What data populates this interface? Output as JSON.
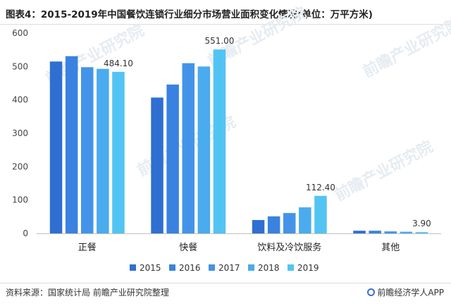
{
  "header": {
    "title": "图表4：2015-2019年中国餐饮连锁行业细分市场营业面积变化情况(单位：万平方米)"
  },
  "footer": {
    "source": "资料来源：国家统计局 前瞻产业研究院整理",
    "brand": "前瞻经济学人APP"
  },
  "watermark_text": "前瞻产业研究院",
  "chart_data": {
    "type": "bar",
    "title": "",
    "xlabel": "",
    "ylabel": "",
    "categories": [
      "正餐",
      "快餐",
      "饮料及冷饮服务",
      "其他"
    ],
    "series": [
      {
        "name": "2015",
        "color": "#2f6fd1",
        "values": [
          515,
          407,
          40,
          8
        ]
      },
      {
        "name": "2016",
        "color": "#3a82e0",
        "values": [
          531,
          446,
          51,
          8
        ]
      },
      {
        "name": "2017",
        "color": "#4394e8",
        "values": [
          498,
          510,
          61,
          6
        ]
      },
      {
        "name": "2018",
        "color": "#4aabee",
        "values": [
          493,
          500,
          78,
          5
        ]
      },
      {
        "name": "2019",
        "color": "#52c4f3",
        "values": [
          484.1,
          551.0,
          112.4,
          3.9
        ]
      }
    ],
    "data_labels": [
      "484.10",
      "551.00",
      "112.40",
      "3.90"
    ],
    "ylim": [
      0,
      600
    ],
    "yticks": [
      0,
      100,
      200,
      300,
      400,
      500,
      600
    ],
    "grid": false,
    "legend_position": "bottom"
  }
}
